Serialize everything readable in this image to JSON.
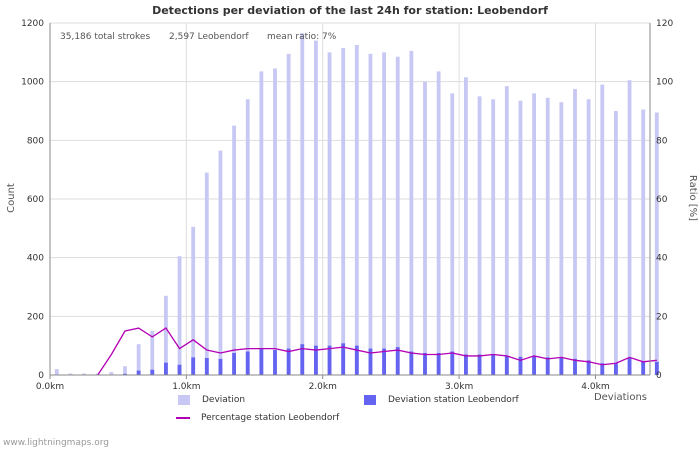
{
  "chart_data": {
    "type": "bar",
    "title": "Detections per deviation of the last 24h for station: Leobendorf",
    "info": {
      "total": "35,186 total strokes",
      "station": "2,597 Leobendorf",
      "ratio": "mean ratio: 7%"
    },
    "ylabel": "Count",
    "y2label": "Ratio [%]",
    "xlabel": "Deviations",
    "xlim": [
      0,
      4.4
    ],
    "ylim": [
      0,
      1200
    ],
    "y2lim": [
      0,
      120
    ],
    "bin_width_km": 0.1,
    "x_ticks": [
      {
        "value": 0,
        "label": "0.0km"
      },
      {
        "value": 1,
        "label": "1.0km"
      },
      {
        "value": 2,
        "label": "2.0km"
      },
      {
        "value": 3,
        "label": "3.0km"
      },
      {
        "value": 4,
        "label": "4.0km"
      }
    ],
    "y_ticks": [
      {
        "value": 0,
        "label": "0"
      },
      {
        "value": 200,
        "label": "200"
      },
      {
        "value": 400,
        "label": "400"
      },
      {
        "value": 600,
        "label": "600"
      },
      {
        "value": 800,
        "label": "800"
      },
      {
        "value": 1000,
        "label": "1000"
      },
      {
        "value": 1200,
        "label": "1200"
      }
    ],
    "y2_ticks": [
      {
        "value": 0,
        "label": "0"
      },
      {
        "value": 20,
        "label": "20"
      },
      {
        "value": 40,
        "label": "40"
      },
      {
        "value": 60,
        "label": "60"
      },
      {
        "value": 80,
        "label": "80"
      },
      {
        "value": 100,
        "label": "100"
      },
      {
        "value": 120,
        "label": "120"
      }
    ],
    "series": [
      {
        "name": "Deviation",
        "kind": "bar",
        "color": "#c8c8f4",
        "values": [
          20,
          5,
          5,
          5,
          10,
          30,
          105,
          150,
          270,
          405,
          505,
          690,
          765,
          850,
          940,
          1035,
          1045,
          1095,
          1165,
          1140,
          1100,
          1115,
          1125,
          1095,
          1100,
          1085,
          1105,
          1000,
          1035,
          960,
          1015,
          950,
          940,
          985,
          935,
          960,
          945,
          930,
          975,
          940,
          990,
          900,
          1005,
          905,
          895
        ]
      },
      {
        "name": "Deviation station Leobendorf",
        "kind": "bar",
        "color": "#6464f0",
        "values": [
          0,
          0,
          0,
          0,
          0,
          4,
          15,
          18,
          42,
          35,
          60,
          58,
          55,
          75,
          80,
          90,
          85,
          90,
          105,
          100,
          100,
          108,
          100,
          90,
          90,
          95,
          80,
          75,
          75,
          80,
          70,
          70,
          70,
          65,
          62,
          65,
          60,
          60,
          55,
          50,
          40,
          40,
          60,
          45,
          45
        ]
      },
      {
        "name": "Percentage station Leobendorf",
        "kind": "line",
        "axis": "right",
        "color": "#b400b4",
        "values": [
          null,
          null,
          null,
          0,
          7,
          15,
          16,
          13,
          16,
          9,
          12,
          8.5,
          7.5,
          8.5,
          9,
          9,
          9,
          8,
          9,
          8.5,
          9,
          9.5,
          8.5,
          7.5,
          8,
          8.5,
          7.5,
          7,
          7,
          7.5,
          6.5,
          6.5,
          7,
          6.5,
          5,
          6.5,
          5.5,
          6,
          5,
          4.5,
          3.5,
          4,
          6,
          4.5,
          5
        ]
      }
    ]
  },
  "legend": {
    "deviation": "Deviation",
    "station": "Deviation station Leobendorf",
    "percentage": "Percentage station Leobendorf"
  },
  "footer": "www.lightningmaps.org"
}
